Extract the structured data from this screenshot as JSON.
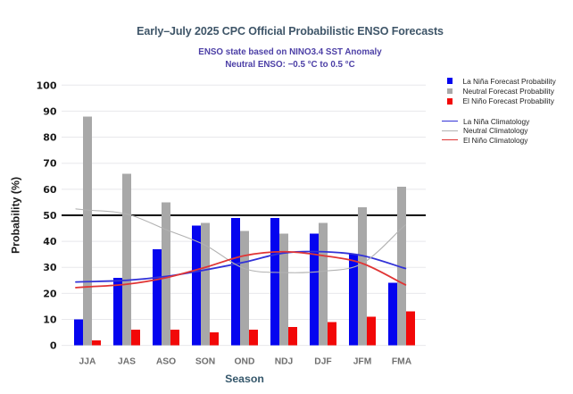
{
  "title": "Early–July 2025 CPC Official Probabilistic ENSO Forecasts",
  "subtitle1": "ENSO state based on NINO3.4 SST Anomaly",
  "subtitle2": "Neutral ENSO: −0.5 °C to 0.5 °C",
  "colors": {
    "background": "#ffffff",
    "title_text": "#3e5568",
    "subtitle_text": "#4c3fa6",
    "axis_tick_text": "#1a1a1a",
    "x_tick_text": "#6f6f6f",
    "axis_title_text": "#1a1a1a",
    "season_title_text": "#35576b",
    "gridline": "#e8e8eb",
    "fifty_percent_line": "#1a1a1a",
    "legend_text": "#222222"
  },
  "chart_data": {
    "type": "bar",
    "title": "Early–July 2025 CPC Official Probabilistic ENSO Forecasts",
    "xlabel": "Season",
    "ylabel": "Probability (%)",
    "ylim": [
      0,
      100
    ],
    "ytick_step": 10,
    "reference_line": 50,
    "grid": true,
    "legend_position": "right",
    "categories": [
      "JJA",
      "JAS",
      "ASO",
      "SON",
      "OND",
      "NDJ",
      "DJF",
      "JFM",
      "FMA"
    ],
    "series": [
      {
        "name": "La Niña Forecast Probability",
        "color": "#0505ef",
        "values": [
          10,
          26,
          37,
          46,
          49,
          49,
          43,
          35,
          24
        ]
      },
      {
        "name": "Neutral Forecast Probability",
        "color": "#a8a8a8",
        "values": [
          88,
          66,
          55,
          47,
          44,
          43,
          47,
          53,
          61
        ]
      },
      {
        "name": "El Niño Forecast Probability",
        "color": "#f20808",
        "values": [
          2,
          6,
          6,
          5,
          6,
          7,
          9,
          11,
          13
        ]
      }
    ],
    "line_series": [
      {
        "name": "La Niña Climatology",
        "color": "#3232d7",
        "width": 1.8,
        "values": [
          24.5,
          25,
          26.5,
          29,
          32,
          35.5,
          36,
          34.5,
          30
        ]
      },
      {
        "name": "Neutral Climatology",
        "color": "#b2b2b2",
        "width": 1.1,
        "values": [
          52,
          50.5,
          44.5,
          38.5,
          29.5,
          28,
          28.5,
          31.5,
          45
        ]
      },
      {
        "name": "El Niño Climatology",
        "color": "#e03535",
        "width": 1.8,
        "values": [
          22.5,
          23.5,
          26,
          30,
          34.5,
          36,
          34.5,
          31.5,
          24
        ]
      }
    ]
  }
}
